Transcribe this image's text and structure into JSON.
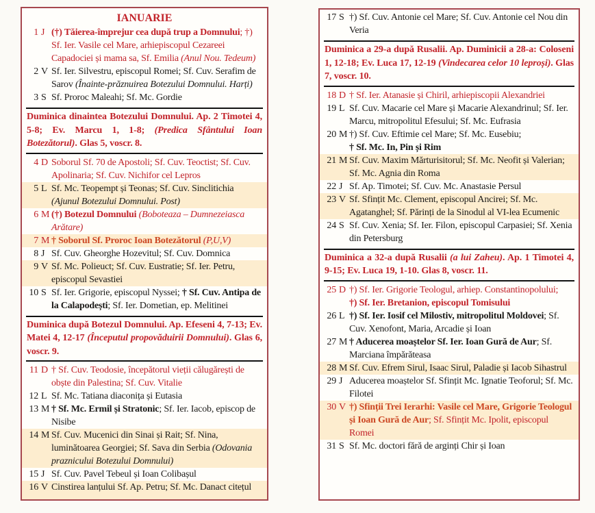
{
  "document_type": "orthodox-church-calendar-page",
  "colors": {
    "red": "#c2232a",
    "orange_red": "#cc4723",
    "black": "#1c1b19",
    "border": "#a6464e",
    "highlight": "#fdedcf",
    "rule": "#111111",
    "page_bg": "#fbfaf6",
    "box_bg": "#fffefb"
  },
  "columns": [
    {
      "id": "box-left",
      "title": "IANUARIE",
      "blocks": [
        {
          "t": "day",
          "num": "1",
          "dow": "J",
          "color": "red",
          "hl": false,
          "segs": [
            [
              "rb",
              "(†) Tăierea-împrejur cea după trup a Domnului"
            ],
            [
              "r",
              "; †) Sf. Ier. Vasile cel Mare, arhiepiscopul Cezareei Capadociei și mama sa, Sf. Emilia "
            ],
            [
              "ri",
              "(Anul Nou. Tedeum)"
            ]
          ]
        },
        {
          "t": "day",
          "num": "2",
          "dow": "V",
          "color": "black",
          "hl": false,
          "segs": [
            [
              "b",
              "Sf. Ier. Silvestru, episcopul Romei; Sf. Cuv. Serafim de Sarov "
            ],
            [
              "bi",
              "(Înainte-prăznuirea Botezului Domnului. Harți)"
            ]
          ]
        },
        {
          "t": "day",
          "num": "3",
          "dow": "S",
          "color": "black",
          "hl": false,
          "segs": [
            [
              "b",
              "Sf. Proroc Maleahi; Sf. Mc. Gordie"
            ]
          ]
        },
        {
          "t": "heading",
          "segs": [
            [
              "rb",
              "Duminica dinaintea Botezului Domnului. Ap. 2 Timotei 4, 5-8; Ev. Marcu 1, 1-8; "
            ],
            [
              "ri",
              "(Predica Sfântului Ioan Botezătorul)"
            ],
            [
              "rb",
              ". Glas 5, voscr. 8."
            ]
          ]
        },
        {
          "t": "day",
          "num": "4",
          "dow": "D",
          "color": "red",
          "hl": false,
          "segs": [
            [
              "r",
              "Soborul Sf. 70 de Apostoli; Sf. Cuv. Teoctist; Sf. Cuv. Apolinaria; Sf. Cuv. Nichifor cel Lepros"
            ]
          ]
        },
        {
          "t": "day",
          "num": "5",
          "dow": "L",
          "color": "black",
          "hl": true,
          "segs": [
            [
              "b",
              "Sf. Mc. Teopempt și Teonas; Sf. Cuv. Sinclitichia "
            ],
            [
              "bi",
              "(Ajunul Botezului Domnului. Post)"
            ]
          ]
        },
        {
          "t": "day",
          "num": "6",
          "dow": "M",
          "color": "red",
          "hl": false,
          "segs": [
            [
              "rb",
              "(†) Botezul Domnului "
            ],
            [
              "ri",
              "(Boboteaza – Dumnezeiasca Arătare)"
            ]
          ]
        },
        {
          "t": "day",
          "num": "7",
          "dow": "M",
          "color": "red",
          "hl": true,
          "segs": [
            [
              "ob",
              "† Soborul Sf. Proroc Ioan Botezătorul "
            ],
            [
              "ri",
              "(P,U,V)"
            ]
          ]
        },
        {
          "t": "day",
          "num": "8",
          "dow": "J",
          "color": "black",
          "hl": false,
          "segs": [
            [
              "b",
              "Sf. Cuv. Gheorghe Hozevitul; Sf. Cuv. Domnica"
            ]
          ]
        },
        {
          "t": "day",
          "num": "9",
          "dow": "V",
          "color": "black",
          "hl": true,
          "segs": [
            [
              "b",
              "Sf. Mc. Polieuct; Sf. Cuv. Eustratie; Sf. Ier. Petru, episcopul Sevastiei"
            ]
          ]
        },
        {
          "t": "day",
          "num": "10",
          "dow": "S",
          "color": "black",
          "hl": false,
          "segs": [
            [
              "b",
              "Sf. Ier. Grigorie, episcopul Nyssei; "
            ],
            [
              "bb",
              "† Sf. Cuv. Antipa de la Calapodești"
            ],
            [
              "b",
              "; Sf. Ier. Dometian, ep. Melitinei"
            ]
          ]
        },
        {
          "t": "heading",
          "segs": [
            [
              "rb",
              "Duminica după Botezul Domnului. Ap. Efeseni 4, 7-13; Ev. Matei 4, 12-17 "
            ],
            [
              "ri",
              "(Începutul propovăduirii Domnului)"
            ],
            [
              "rb",
              ". Glas 6, voscr. 9."
            ]
          ]
        },
        {
          "t": "day",
          "num": "11",
          "dow": "D",
          "color": "red",
          "hl": false,
          "segs": [
            [
              "r",
              "† Sf. Cuv. Teodosie, începătorul vieții călugărești de obște din Palestina; Sf. Cuv. Vitalie"
            ]
          ]
        },
        {
          "t": "day",
          "num": "12",
          "dow": "L",
          "color": "black",
          "hl": false,
          "segs": [
            [
              "b",
              "Sf. Mc. Tatiana diaconița și Eutasia"
            ]
          ]
        },
        {
          "t": "day",
          "num": "13",
          "dow": "M",
          "color": "black",
          "hl": false,
          "segs": [
            [
              "bb",
              "† Sf. Mc. Ermil și Stratonic"
            ],
            [
              "b",
              "; Sf. Ier. Iacob, episcop de Nisibe"
            ]
          ]
        },
        {
          "t": "day",
          "num": "14",
          "dow": "M",
          "color": "black",
          "hl": true,
          "segs": [
            [
              "b",
              "Sf. Cuv. Mucenici din Sinai și Rait; Sf. Nina, luminătoarea Georgiei; Sf. Sava din Serbia "
            ],
            [
              "bi",
              "(Odovania praznicului Botezului Domnului)"
            ]
          ]
        },
        {
          "t": "day",
          "num": "15",
          "dow": "J",
          "color": "black",
          "hl": false,
          "segs": [
            [
              "b",
              "Sf. Cuv. Pavel Tebeul și Ioan Colibașul"
            ]
          ]
        },
        {
          "t": "day",
          "num": "16",
          "dow": "V",
          "color": "black",
          "hl": true,
          "pad": true,
          "segs": [
            [
              "b",
              "Cinstirea lanțului Sf. Ap. Petru; Sf. Mc. Danact citețul"
            ]
          ]
        }
      ]
    },
    {
      "id": "box-right",
      "title": "",
      "blocks": [
        {
          "t": "day",
          "num": "17",
          "dow": "S",
          "color": "black",
          "hl": false,
          "segs": [
            [
              "b",
              "†) Sf. Cuv. Antonie cel Mare; Sf. Cuv. Antonie cel Nou din Veria"
            ]
          ]
        },
        {
          "t": "heading",
          "segs": [
            [
              "rb",
              "Duminica a 29-a după Rusalii. Ap. Duminicii a 28-a: Coloseni 1, 12-18; Ev. Luca 17, 12-19 "
            ],
            [
              "ri",
              "(Vindecarea celor 10 leproși)"
            ],
            [
              "rb",
              ". Glas 7, voscr. 10."
            ]
          ]
        },
        {
          "t": "day",
          "num": "18",
          "dow": "D",
          "color": "red",
          "hl": false,
          "segs": [
            [
              "r",
              "† Sf. Ier. Atanasie și Chiril, arhiepiscopii Alexandriei"
            ]
          ]
        },
        {
          "t": "day",
          "num": "19",
          "dow": "L",
          "color": "black",
          "hl": false,
          "segs": [
            [
              "b",
              "Sf. Cuv. Macarie cel Mare și Macarie Alexandrinul; Sf. Ier. Marcu, mitropolitul Efesului; Sf. Mc. Eufrasia"
            ]
          ]
        },
        {
          "t": "day",
          "num": "20",
          "dow": "M",
          "color": "black",
          "hl": false,
          "segs": [
            [
              "b",
              "†) Sf. Cuv. Eftimie cel Mare; Sf. Mc. Eusebiu;"
            ],
            [
              "br",
              ""
            ],
            [
              "bb",
              "† Sf. Mc. In, Pin și Rim"
            ]
          ]
        },
        {
          "t": "day",
          "num": "21",
          "dow": "M",
          "color": "black",
          "hl": true,
          "segs": [
            [
              "b",
              "Sf. Cuv. Maxim Mărturisitorul; Sf. Mc. Neofit și Valerian; Sf. Mc. Agnia din Roma"
            ]
          ]
        },
        {
          "t": "day",
          "num": "22",
          "dow": "J",
          "color": "black",
          "hl": false,
          "segs": [
            [
              "b",
              "Sf. Ap. Timotei; Sf. Cuv. Mc. Anastasie Persul"
            ]
          ]
        },
        {
          "t": "day",
          "num": "23",
          "dow": "V",
          "color": "black",
          "hl": true,
          "segs": [
            [
              "b",
              "Sf. Sfințit Mc. Clement, episcopul Ancirei; Sf. Mc. Agatanghel; Sf. Părinți de la Sinodul al VI-lea Ecumenic"
            ]
          ]
        },
        {
          "t": "day",
          "num": "24",
          "dow": "S",
          "color": "black",
          "hl": false,
          "segs": [
            [
              "b",
              "Sf. Cuv. Xenia; Sf. Ier. Filon, episcopul Carpasiei; Sf. Xenia din Petersburg"
            ]
          ]
        },
        {
          "t": "heading",
          "segs": [
            [
              "rb",
              "Duminica a 32-a după Rusalii "
            ],
            [
              "ri",
              "(a lui Zaheu)"
            ],
            [
              "rb",
              ". Ap. 1 Timotei 4, 9-15; Ev. Luca 19, 1-10. Glas 8, voscr. 11."
            ]
          ]
        },
        {
          "t": "day",
          "num": "25",
          "dow": "D",
          "color": "red",
          "hl": false,
          "segs": [
            [
              "r",
              "†) Sf. Ier. Grigorie Teologul, arhiep. Constantinopolului;"
            ],
            [
              "br",
              ""
            ],
            [
              "rb",
              "†) Sf. Ier. Bretanion, episcopul Tomisului"
            ]
          ]
        },
        {
          "t": "day",
          "num": "26",
          "dow": "L",
          "color": "black",
          "hl": false,
          "segs": [
            [
              "bb",
              "†) Sf. Ier. Iosif cel Milostiv, mitropolitul Moldovei"
            ],
            [
              "b",
              "; Sf. Cuv. Xenofont, Maria, Arcadie și Ioan"
            ]
          ]
        },
        {
          "t": "day",
          "num": "27",
          "dow": "M",
          "color": "black",
          "hl": false,
          "segs": [
            [
              "bb",
              "† Aducerea moaștelor Sf. Ier. Ioan Gură de Aur"
            ],
            [
              "b",
              "; Sf. Marciana împărăteasa"
            ]
          ]
        },
        {
          "t": "day",
          "num": "28",
          "dow": "M",
          "color": "black",
          "hl": true,
          "segs": [
            [
              "b",
              "Sf. Cuv. Efrem Sirul, Isaac Sirul, Paladie și Iacob Sihastrul"
            ]
          ]
        },
        {
          "t": "day",
          "num": "29",
          "dow": "J",
          "color": "black",
          "hl": false,
          "segs": [
            [
              "b",
              "Aducerea moaștelor Sf. Sfințit Mc. Ignatie Teoforul; Sf. Mc. Filotei"
            ]
          ]
        },
        {
          "t": "day",
          "num": "30",
          "dow": "V",
          "color": "red",
          "hl": true,
          "segs": [
            [
              "ob",
              "†) Sfinții Trei Ierarhi: Vasile cel Mare, Grigorie Teologul și Ioan Gură de Aur"
            ],
            [
              "r",
              "; Sf. Sfințit Mc. Ipolit, episcopul Romei"
            ]
          ]
        },
        {
          "t": "day",
          "num": "31",
          "dow": "S",
          "color": "black",
          "hl": false,
          "segs": [
            [
              "b",
              "Sf. Mc. doctori fără de arginți Chir și Ioan"
            ]
          ]
        }
      ]
    }
  ]
}
